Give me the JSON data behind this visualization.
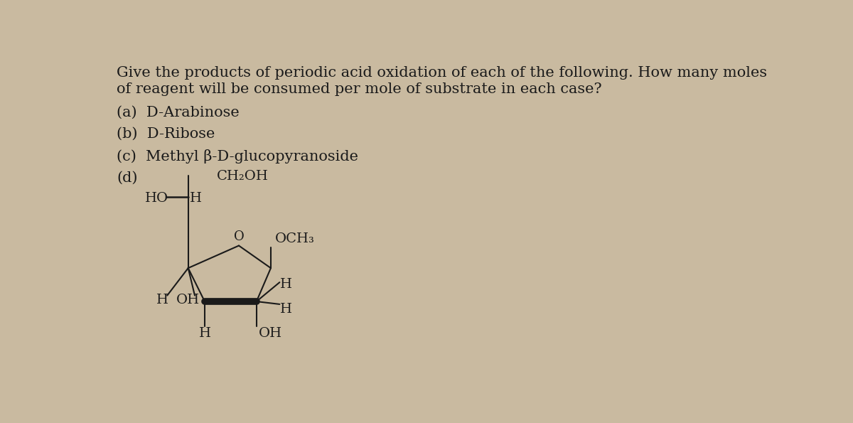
{
  "bg_color": "#c9baa0",
  "text_color": "#1a1a1a",
  "title_line1": "Give the products of periodic acid oxidation of each of the following. How many moles",
  "title_line2": "of reagent will be consumed per mole of substrate in each case?",
  "item_a": "(a)  D-Arabinose",
  "item_b": "(b)  D-Ribose",
  "item_c": "(c)  Methyl β-D-glucopyranoside",
  "item_d": "(d)",
  "ch2oh": "CH₂OH",
  "och3": "OCH₃",
  "oxygen_label": "O",
  "font_size_title": 15,
  "font_size_items": 15,
  "font_size_struct": 14
}
